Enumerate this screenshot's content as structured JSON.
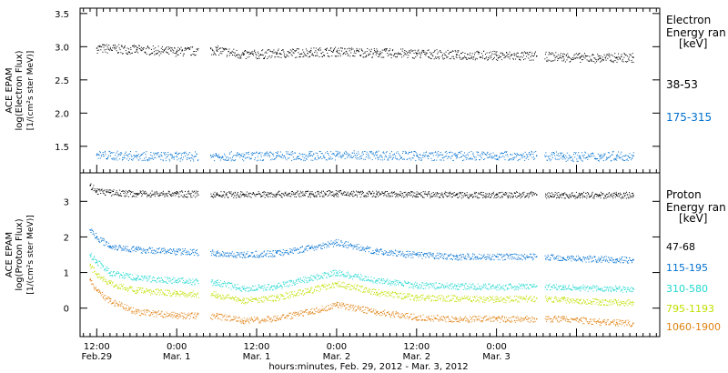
{
  "chart_data": [
    {
      "type": "scatter",
      "panel": "electron",
      "ylabel_lines": [
        "ACE EPAM",
        "log(Electron Flux)",
        "[1/(cm²s ster MeV)]"
      ],
      "ylim": [
        1.1,
        3.58
      ],
      "yticks": [
        1.5,
        2.0,
        2.5,
        3.0,
        3.5
      ],
      "ytick_labels": [
        "1.5",
        "2.0",
        "2.5",
        "3.0",
        "3.5"
      ],
      "legend_title_lines": [
        "Electron",
        "Energy ran",
        "[keV]"
      ],
      "series": [
        {
          "name": "38-53",
          "color": "#000000",
          "points": [
            [
              0.0,
              2.98
            ],
            [
              6.0,
              2.96
            ],
            [
              12.0,
              2.93
            ],
            [
              18.0,
              2.95
            ],
            [
              22.0,
              2.88
            ],
            [
              27.0,
              2.9
            ],
            [
              32.0,
              2.92
            ],
            [
              36.0,
              2.93
            ],
            [
              42.0,
              2.91
            ],
            [
              48.0,
              2.9
            ],
            [
              54.0,
              2.88
            ],
            [
              60.0,
              2.87
            ],
            [
              66.0,
              2.86
            ],
            [
              70.0,
              2.85
            ],
            [
              72.5,
              2.84
            ],
            [
              75.5,
              2.83
            ],
            [
              78.0,
              2.84
            ],
            [
              80.5,
              2.84
            ]
          ]
        },
        {
          "name": "175-315",
          "color": "#0070d0",
          "points": [
            [
              0.0,
              1.37
            ],
            [
              6.0,
              1.36
            ],
            [
              12.0,
              1.35
            ],
            [
              18.0,
              1.36
            ],
            [
              22.0,
              1.35
            ],
            [
              27.0,
              1.36
            ],
            [
              32.0,
              1.36
            ],
            [
              36.0,
              1.37
            ],
            [
              42.0,
              1.37
            ],
            [
              48.0,
              1.36
            ],
            [
              54.0,
              1.36
            ],
            [
              60.0,
              1.36
            ],
            [
              66.0,
              1.36
            ],
            [
              70.0,
              1.35
            ],
            [
              72.5,
              1.35
            ],
            [
              75.5,
              1.35
            ],
            [
              78.0,
              1.36
            ],
            [
              80.5,
              1.36
            ]
          ]
        }
      ]
    },
    {
      "type": "scatter",
      "panel": "proton",
      "ylabel_lines": [
        "ACE EPAM",
        "log(Proton Flux)",
        "[1/(cm²s ster MeV)]"
      ],
      "ylim": [
        -0.8,
        3.8
      ],
      "yticks": [
        0,
        1,
        2,
        3
      ],
      "ytick_labels": [
        "0",
        "1",
        "2",
        "3"
      ],
      "legend_title_lines": [
        "Proton",
        "Energy ran",
        "[keV]"
      ],
      "series": [
        {
          "name": "47-68",
          "color": "#000000",
          "points": [
            [
              -1.0,
              3.45
            ],
            [
              0.0,
              3.3
            ],
            [
              2.0,
              3.25
            ],
            [
              6.0,
              3.22
            ],
            [
              12.0,
              3.22
            ],
            [
              18.0,
              3.2
            ],
            [
              22.0,
              3.2
            ],
            [
              27.0,
              3.21
            ],
            [
              32.0,
              3.22
            ],
            [
              36.0,
              3.23
            ],
            [
              42.0,
              3.21
            ],
            [
              48.0,
              3.2
            ],
            [
              54.0,
              3.19
            ],
            [
              60.0,
              3.19
            ],
            [
              66.0,
              3.19
            ],
            [
              70.0,
              3.18
            ],
            [
              72.5,
              3.18
            ],
            [
              75.5,
              3.18
            ],
            [
              78.0,
              3.18
            ],
            [
              80.5,
              3.18
            ]
          ]
        },
        {
          "name": "115-195",
          "color": "#0070d0",
          "points": [
            [
              -1.0,
              2.2
            ],
            [
              0.0,
              2.0
            ],
            [
              2.0,
              1.75
            ],
            [
              6.0,
              1.65
            ],
            [
              12.0,
              1.6
            ],
            [
              18.0,
              1.55
            ],
            [
              22.0,
              1.5
            ],
            [
              27.0,
              1.55
            ],
            [
              32.0,
              1.7
            ],
            [
              36.0,
              1.85
            ],
            [
              42.0,
              1.6
            ],
            [
              48.0,
              1.5
            ],
            [
              54.0,
              1.45
            ],
            [
              60.0,
              1.45
            ],
            [
              66.0,
              1.45
            ],
            [
              70.0,
              1.42
            ],
            [
              72.5,
              1.4
            ],
            [
              75.5,
              1.38
            ],
            [
              78.0,
              1.37
            ],
            [
              80.5,
              1.36
            ]
          ]
        },
        {
          "name": "310-580",
          "color": "#20d8d0",
          "points": [
            [
              -1.0,
              1.5
            ],
            [
              0.0,
              1.3
            ],
            [
              2.0,
              1.0
            ],
            [
              6.0,
              0.85
            ],
            [
              12.0,
              0.78
            ],
            [
              18.0,
              0.72
            ],
            [
              22.0,
              0.55
            ],
            [
              27.0,
              0.62
            ],
            [
              32.0,
              0.85
            ],
            [
              36.0,
              1.0
            ],
            [
              42.0,
              0.78
            ],
            [
              48.0,
              0.65
            ],
            [
              54.0,
              0.62
            ],
            [
              60.0,
              0.6
            ],
            [
              66.0,
              0.62
            ],
            [
              70.0,
              0.6
            ],
            [
              72.5,
              0.58
            ],
            [
              75.5,
              0.55
            ],
            [
              78.0,
              0.55
            ],
            [
              80.5,
              0.55
            ]
          ]
        },
        {
          "name": "795-1193",
          "color": "#c0e000",
          "points": [
            [
              -1.0,
              1.2
            ],
            [
              0.0,
              0.95
            ],
            [
              2.0,
              0.7
            ],
            [
              6.0,
              0.5
            ],
            [
              12.0,
              0.42
            ],
            [
              18.0,
              0.38
            ],
            [
              22.0,
              0.22
            ],
            [
              27.0,
              0.3
            ],
            [
              32.0,
              0.5
            ],
            [
              36.0,
              0.7
            ],
            [
              42.0,
              0.45
            ],
            [
              48.0,
              0.3
            ],
            [
              54.0,
              0.28
            ],
            [
              60.0,
              0.25
            ],
            [
              66.0,
              0.28
            ],
            [
              70.0,
              0.25
            ],
            [
              72.5,
              0.22
            ],
            [
              75.5,
              0.18
            ],
            [
              78.0,
              0.17
            ],
            [
              80.5,
              0.16
            ]
          ]
        },
        {
          "name": "1060-1900",
          "color": "#e08010",
          "points": [
            [
              -1.0,
              0.8
            ],
            [
              0.0,
              0.5
            ],
            [
              2.0,
              0.2
            ],
            [
              6.0,
              -0.1
            ],
            [
              12.0,
              -0.2
            ],
            [
              18.0,
              -0.22
            ],
            [
              22.0,
              -0.35
            ],
            [
              27.0,
              -0.28
            ],
            [
              32.0,
              -0.1
            ],
            [
              36.0,
              0.1
            ],
            [
              42.0,
              -0.1
            ],
            [
              48.0,
              -0.25
            ],
            [
              54.0,
              -0.3
            ],
            [
              60.0,
              -0.3
            ],
            [
              66.0,
              -0.3
            ],
            [
              70.0,
              -0.3
            ],
            [
              72.5,
              -0.33
            ],
            [
              75.5,
              -0.38
            ],
            [
              78.0,
              -0.4
            ],
            [
              80.5,
              -0.42
            ]
          ]
        }
      ]
    }
  ],
  "x_axis": {
    "xlim": [
      -2.5,
      84.5
    ],
    "ticks": [
      0,
      12,
      24,
      36,
      48,
      60,
      72
    ],
    "time_labels": [
      "12:00",
      "0:00",
      "12:00",
      "0:00",
      "12:00",
      "0:00"
    ],
    "date_labels": [
      "Feb.29",
      "Mar. 1",
      "Mar. 1",
      "Mar. 2",
      "Mar. 2",
      "Mar. 3"
    ],
    "label_ticks": [
      0,
      12,
      24,
      36,
      48,
      60
    ],
    "minor_step": 1,
    "xlabel": "hours:minutes, Feb. 29, 2012 - Mar.  3, 2012",
    "gaps": [
      [
        15.2,
        17.0
      ],
      [
        65.8,
        67.2
      ]
    ]
  }
}
